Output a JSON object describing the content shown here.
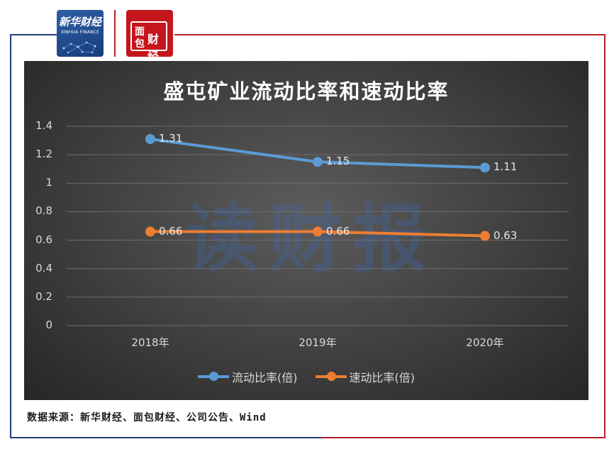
{
  "logos": {
    "xinhua_cn": "新华财经",
    "xinhua_en": "XINHUA FINANCE",
    "mianbao_text": "面包财经"
  },
  "watermark": "读财报",
  "source": "数据来源：新华财经、面包财经、公司公告、Wind",
  "colors": {
    "background": "#3f3f3f",
    "series_current": "#5b9bd5",
    "series_quick": "#ed7d31",
    "frame_blue": "#1f3f7a",
    "frame_red": "#b8202a"
  },
  "chart_data": {
    "type": "line",
    "title": "盛屯矿业流动比率和速动比率",
    "categories": [
      "2018年",
      "2019年",
      "2020年"
    ],
    "series": [
      {
        "name": "流动比率(倍)",
        "values": [
          1.31,
          1.15,
          1.11
        ],
        "labels": [
          "1.31",
          "1.15",
          "1.11"
        ]
      },
      {
        "name": "速动比率(倍)",
        "values": [
          0.66,
          0.66,
          0.63
        ],
        "labels": [
          "0.66",
          "0.66",
          "0.63"
        ]
      }
    ],
    "y_ticks": [
      "0",
      "0.2",
      "0.4",
      "0.6",
      "0.8",
      "1",
      "1.2",
      "1.4"
    ],
    "ylim": [
      0,
      1.4
    ],
    "grid": true,
    "legend_position": "bottom"
  }
}
